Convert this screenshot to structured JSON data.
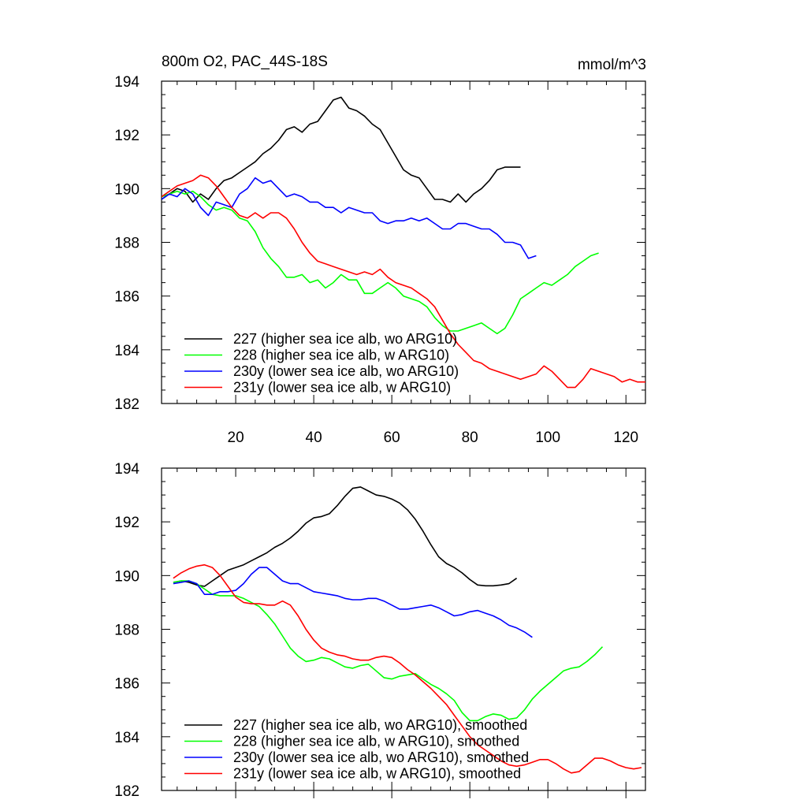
{
  "page": {
    "title": "800m O2, PAC_44S-18S",
    "units": "mmol/m^3"
  },
  "colors": {
    "s227": "#000000",
    "s228": "#00ff00",
    "s230y": "#0000ff",
    "s231y": "#ff0000"
  },
  "chart_data": [
    {
      "type": "line",
      "panel": "top",
      "title": "800m O2, PAC_44S-18S",
      "units": "mmol/m^3",
      "xlim": [
        1,
        125
      ],
      "ylim": [
        182,
        194
      ],
      "xticks": [
        20,
        40,
        60,
        80,
        100,
        120
      ],
      "yticks": [
        182,
        184,
        186,
        188,
        190,
        192,
        194
      ],
      "xtick_labels": [
        "20",
        "40",
        "60",
        "80",
        "100",
        "120"
      ],
      "ytick_labels": [
        "182",
        "184",
        "186",
        "188",
        "190",
        "192",
        "194"
      ],
      "legend_position": "bottom-left",
      "series": [
        {
          "key": "s227",
          "name": "227 (higher sea ice alb, wo ARG10)",
          "x": [
            1,
            3,
            5,
            7,
            9,
            11,
            13,
            15,
            17,
            19,
            21,
            23,
            25,
            27,
            29,
            31,
            33,
            35,
            37,
            39,
            41,
            43,
            45,
            47,
            49,
            51,
            53,
            55,
            57,
            59,
            61,
            63,
            65,
            67,
            69,
            71,
            73,
            75,
            77,
            79,
            81,
            83,
            85,
            87,
            89,
            91,
            93
          ],
          "y": [
            189.6,
            189.8,
            190.0,
            189.9,
            189.5,
            189.8,
            189.6,
            190.0,
            190.3,
            190.4,
            190.6,
            190.8,
            191.0,
            191.3,
            191.5,
            191.8,
            192.2,
            192.3,
            192.1,
            192.4,
            192.5,
            192.9,
            193.3,
            193.4,
            193.0,
            192.9,
            192.7,
            192.4,
            192.2,
            191.7,
            191.2,
            190.7,
            190.5,
            190.4,
            190.0,
            189.6,
            189.6,
            189.5,
            189.8,
            189.5,
            189.8,
            190.0,
            190.3,
            190.7,
            190.8,
            190.8,
            190.8
          ]
        },
        {
          "key": "s228",
          "name": "228 (higher sea ice alb, w ARG10)",
          "x": [
            1,
            3,
            5,
            7,
            9,
            11,
            13,
            15,
            17,
            19,
            21,
            23,
            25,
            27,
            29,
            31,
            33,
            35,
            37,
            39,
            41,
            43,
            45,
            47,
            49,
            51,
            53,
            55,
            57,
            59,
            61,
            63,
            65,
            67,
            69,
            71,
            73,
            75,
            77,
            79,
            81,
            83,
            85,
            87,
            89,
            91,
            93,
            95,
            97,
            99,
            101,
            103,
            105,
            107,
            109,
            111,
            113
          ],
          "y": [
            189.7,
            189.8,
            189.9,
            189.8,
            189.9,
            189.7,
            189.4,
            189.2,
            189.3,
            189.2,
            188.9,
            188.8,
            188.4,
            187.8,
            187.4,
            187.1,
            186.7,
            186.7,
            186.8,
            186.5,
            186.6,
            186.3,
            186.5,
            186.8,
            186.6,
            186.6,
            186.1,
            186.1,
            186.3,
            186.5,
            186.3,
            186.0,
            185.9,
            185.8,
            185.6,
            185.2,
            184.9,
            184.7,
            184.7,
            184.8,
            184.9,
            185.0,
            184.8,
            184.6,
            184.8,
            185.3,
            185.9,
            186.1,
            186.3,
            186.5,
            186.4,
            186.6,
            186.8,
            187.1,
            187.3,
            187.5,
            187.6
          ]
        },
        {
          "key": "s230y",
          "name": "230y (lower sea ice alb, wo ARG10)",
          "x": [
            1,
            3,
            5,
            7,
            9,
            11,
            13,
            15,
            17,
            19,
            21,
            23,
            25,
            27,
            29,
            31,
            33,
            35,
            37,
            39,
            41,
            43,
            45,
            47,
            49,
            51,
            53,
            55,
            57,
            59,
            61,
            63,
            65,
            67,
            69,
            71,
            73,
            75,
            77,
            79,
            81,
            83,
            85,
            87,
            89,
            91,
            93,
            95,
            97
          ],
          "y": [
            189.6,
            189.8,
            189.7,
            190.0,
            189.8,
            189.3,
            189.0,
            189.5,
            189.4,
            189.3,
            189.8,
            190.0,
            190.4,
            190.2,
            190.3,
            190.0,
            189.7,
            189.8,
            189.7,
            189.5,
            189.5,
            189.3,
            189.3,
            189.1,
            189.3,
            189.2,
            189.1,
            189.1,
            188.8,
            188.7,
            188.8,
            188.8,
            188.9,
            188.8,
            188.9,
            188.7,
            188.5,
            188.5,
            188.7,
            188.7,
            188.6,
            188.5,
            188.5,
            188.3,
            188.0,
            188.0,
            187.9,
            187.4,
            187.5
          ]
        },
        {
          "key": "s231y",
          "name": "231y (lower sea ice alb, w ARG10)",
          "x": [
            1,
            3,
            5,
            7,
            9,
            11,
            13,
            15,
            17,
            19,
            21,
            23,
            25,
            27,
            29,
            31,
            33,
            35,
            37,
            39,
            41,
            43,
            45,
            47,
            49,
            51,
            53,
            55,
            57,
            59,
            61,
            63,
            65,
            67,
            69,
            71,
            73,
            75,
            77,
            79,
            81,
            83,
            85,
            87,
            89,
            91,
            93,
            95,
            97,
            99,
            101,
            103,
            105,
            107,
            109,
            111,
            113,
            115,
            117,
            119,
            121,
            123,
            125
          ],
          "y": [
            189.7,
            189.9,
            190.1,
            190.2,
            190.3,
            190.5,
            190.4,
            190.1,
            189.7,
            189.3,
            189.0,
            188.9,
            189.1,
            188.9,
            189.1,
            189.1,
            188.9,
            188.5,
            188.0,
            187.6,
            187.3,
            187.2,
            187.1,
            187.0,
            186.9,
            186.8,
            186.9,
            186.8,
            187.0,
            186.7,
            186.5,
            186.4,
            186.3,
            186.1,
            185.9,
            185.6,
            185.1,
            184.6,
            184.2,
            183.9,
            183.6,
            183.5,
            183.3,
            183.2,
            183.1,
            183.0,
            182.9,
            183.0,
            183.1,
            183.4,
            183.2,
            182.9,
            182.6,
            182.6,
            182.9,
            183.3,
            183.2,
            183.1,
            183.0,
            182.8,
            182.9,
            182.8,
            182.8
          ]
        }
      ]
    },
    {
      "type": "line",
      "panel": "bottom",
      "xlim": [
        1,
        125
      ],
      "ylim": [
        182,
        194
      ],
      "xticks": [
        20,
        40,
        60,
        80,
        100,
        120
      ],
      "yticks": [
        182,
        184,
        186,
        188,
        190,
        192,
        194
      ],
      "ytick_labels": [
        "182",
        "184",
        "186",
        "188",
        "190",
        "192",
        "194"
      ],
      "legend_position": "bottom-left",
      "series": [
        {
          "key": "s227",
          "name": "227 (higher sea ice alb, wo ARG10), smoothed",
          "x": [
            4,
            6,
            8,
            10,
            12,
            14,
            16,
            18,
            20,
            22,
            24,
            26,
            28,
            30,
            32,
            34,
            36,
            38,
            40,
            42,
            44,
            46,
            48,
            50,
            52,
            54,
            56,
            58,
            60,
            62,
            64,
            66,
            68,
            70,
            72,
            74,
            76,
            78,
            80,
            82,
            84,
            86,
            88,
            90,
            92
          ],
          "y": [
            189.75,
            189.8,
            189.75,
            189.65,
            189.6,
            189.8,
            190.0,
            190.2,
            190.3,
            190.4,
            190.55,
            190.7,
            190.85,
            191.05,
            191.2,
            191.4,
            191.65,
            191.95,
            192.15,
            192.2,
            192.3,
            192.6,
            192.95,
            193.25,
            193.3,
            193.15,
            193.0,
            192.95,
            192.85,
            192.7,
            192.45,
            192.1,
            191.65,
            191.15,
            190.7,
            190.45,
            190.3,
            190.1,
            189.85,
            189.65,
            189.62,
            189.62,
            189.65,
            189.7,
            189.9
          ]
        },
        {
          "key": "s228",
          "name": "228 (higher sea ice alb, w ARG10), smoothed",
          "x": [
            4,
            6,
            8,
            10,
            12,
            14,
            16,
            18,
            20,
            22,
            24,
            26,
            28,
            30,
            32,
            34,
            36,
            38,
            40,
            42,
            44,
            46,
            48,
            50,
            52,
            54,
            56,
            58,
            60,
            62,
            64,
            66,
            68,
            70,
            72,
            74,
            76,
            78,
            80,
            82,
            84,
            86,
            88,
            90,
            92,
            94,
            96,
            98,
            100,
            102,
            104,
            106,
            108,
            110,
            112,
            114
          ],
          "y": [
            189.75,
            189.8,
            189.8,
            189.7,
            189.5,
            189.3,
            189.25,
            189.25,
            189.25,
            189.15,
            189.0,
            188.85,
            188.55,
            188.2,
            187.75,
            187.3,
            187.0,
            186.8,
            186.85,
            186.95,
            186.9,
            186.75,
            186.6,
            186.55,
            186.65,
            186.7,
            186.45,
            186.2,
            186.15,
            186.25,
            186.3,
            186.35,
            186.15,
            185.95,
            185.8,
            185.6,
            185.35,
            184.9,
            184.6,
            184.6,
            184.75,
            184.85,
            184.8,
            184.65,
            184.7,
            185.0,
            185.4,
            185.7,
            185.95,
            186.2,
            186.45,
            186.55,
            186.6,
            186.8,
            187.05,
            187.35
          ]
        },
        {
          "key": "s230y",
          "name": "230y (lower sea ice alb, wo ARG10), smoothed",
          "x": [
            4,
            6,
            8,
            10,
            12,
            14,
            16,
            18,
            20,
            22,
            24,
            26,
            28,
            30,
            32,
            34,
            36,
            38,
            40,
            42,
            44,
            46,
            48,
            50,
            52,
            54,
            56,
            58,
            60,
            62,
            64,
            66,
            68,
            70,
            72,
            74,
            76,
            78,
            80,
            82,
            84,
            86,
            88,
            90,
            92,
            94,
            96
          ],
          "y": [
            189.7,
            189.75,
            189.8,
            189.7,
            189.3,
            189.3,
            189.4,
            189.4,
            189.45,
            189.7,
            190.05,
            190.3,
            190.3,
            190.05,
            189.8,
            189.7,
            189.7,
            189.55,
            189.4,
            189.35,
            189.3,
            189.25,
            189.15,
            189.1,
            189.1,
            189.15,
            189.15,
            189.05,
            188.9,
            188.75,
            188.75,
            188.8,
            188.85,
            188.9,
            188.8,
            188.65,
            188.5,
            188.55,
            188.65,
            188.7,
            188.6,
            188.5,
            188.35,
            188.15,
            188.05,
            187.9,
            187.7
          ]
        },
        {
          "key": "s231y",
          "name": "231y (lower sea ice alb, w ARG10), smoothed",
          "x": [
            4,
            6,
            8,
            10,
            12,
            14,
            16,
            18,
            20,
            22,
            24,
            26,
            28,
            30,
            32,
            34,
            36,
            38,
            40,
            42,
            44,
            46,
            48,
            50,
            52,
            54,
            56,
            58,
            60,
            62,
            64,
            66,
            68,
            70,
            72,
            74,
            76,
            78,
            80,
            82,
            84,
            86,
            88,
            90,
            92,
            94,
            96,
            98,
            100,
            102,
            104,
            106,
            108,
            110,
            112,
            114,
            116,
            118,
            120,
            122,
            124
          ],
          "y": [
            189.9,
            190.1,
            190.25,
            190.35,
            190.4,
            190.3,
            190.0,
            189.6,
            189.2,
            189.0,
            188.95,
            188.95,
            188.9,
            188.9,
            189.05,
            188.9,
            188.5,
            188.0,
            187.6,
            187.3,
            187.15,
            187.05,
            187.0,
            186.9,
            186.85,
            186.85,
            186.95,
            187.0,
            186.95,
            186.75,
            186.5,
            186.3,
            186.05,
            185.8,
            185.5,
            185.2,
            184.8,
            184.4,
            184.0,
            183.7,
            183.5,
            183.3,
            183.1,
            182.95,
            182.9,
            182.95,
            183.05,
            183.15,
            183.15,
            183.0,
            182.8,
            182.65,
            182.7,
            182.95,
            183.2,
            183.2,
            183.1,
            182.95,
            182.85,
            182.8,
            182.85
          ]
        }
      ]
    }
  ]
}
